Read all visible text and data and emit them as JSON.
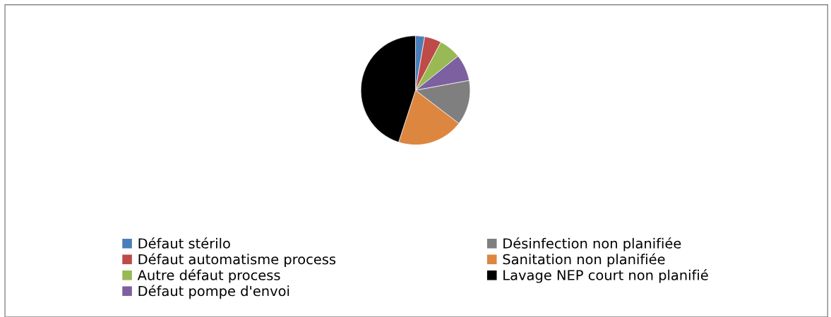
{
  "chart_data": {
    "type": "pie",
    "categories": [
      "Défaut stérilo",
      "Défaut automatisme process",
      "Autre défaut process",
      "Défaut pompe d'envoi",
      "Désinfection non planifiée",
      "Sanitation non planifiée",
      "Lavage NEP court non planifié"
    ],
    "values": [
      2.7,
      5.0,
      6.5,
      7.9,
      13.3,
      19.6,
      45.0
    ],
    "colors": [
      "#4a7ebb",
      "#be4b48",
      "#98b954",
      "#7d60a0",
      "#7f7f7f",
      "#dd8640",
      "#000000"
    ],
    "legend": "bottom"
  }
}
